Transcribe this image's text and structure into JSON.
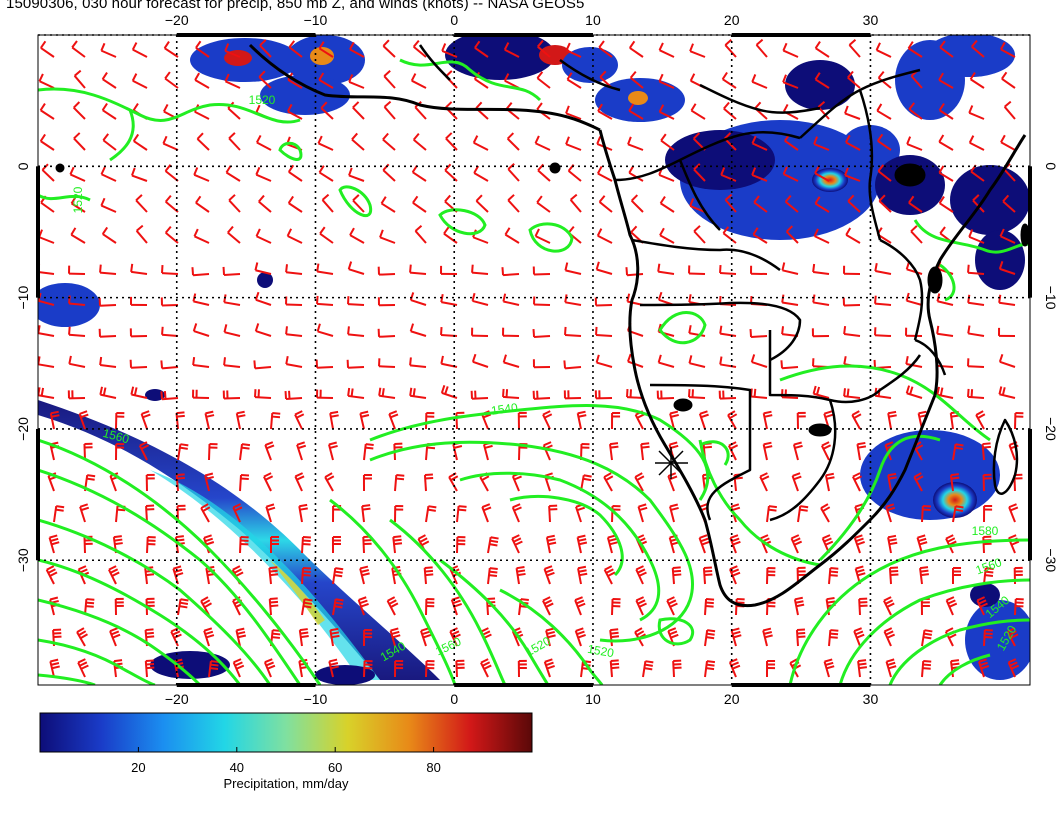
{
  "title": "15090306, 030 hour forecast for precip, 850 mb Z, and winds (knots) -- NASA GEOS5",
  "axes": {
    "top_lon_labels": [
      "−20",
      "−10",
      "0",
      "10",
      "20",
      "30"
    ],
    "bottom_lon_labels": [
      "−20",
      "−10",
      "0",
      "10",
      "20",
      "30"
    ],
    "left_lat_labels": [
      "0",
      "−10",
      "−20",
      "−30"
    ],
    "right_lat_labels": [
      "0",
      "−10",
      "−20",
      "−30"
    ],
    "lon_values": [
      -20,
      -10,
      0,
      10,
      20,
      30
    ],
    "lat_values": [
      0,
      -10,
      -20,
      -30
    ],
    "lon_range": [
      -30,
      41.5
    ],
    "lat_range": [
      -39.5,
      10
    ]
  },
  "contours": {
    "color": "#22ee22",
    "labels": [
      "1520",
      "1540",
      "1560",
      "1520",
      "1540",
      "1560",
      "1580",
      "1560",
      "1540",
      "1520",
      "1520",
      "1520"
    ]
  },
  "colors": {
    "wind_barb": "#ee1111",
    "contour": "#22ee22",
    "coast": "#000000"
  },
  "colorbar": {
    "label": "Precipitation, mm/day",
    "tick_labels": [
      "20",
      "40",
      "60",
      "80"
    ],
    "tick_values": [
      20,
      40,
      60,
      80
    ],
    "range": [
      0,
      100
    ],
    "colors": [
      "#0d0d78",
      "#1a3cc8",
      "#1b8ef0",
      "#22d6e6",
      "#7fe0a0",
      "#d8d22a",
      "#e88a18",
      "#d21818",
      "#5a0808"
    ]
  },
  "center_marker": "plus-star"
}
